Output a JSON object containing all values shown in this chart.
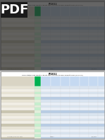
{
  "page_bg": "#c8c8c8",
  "table_bg": "#ffffff",
  "header_label_bg": "#d9d4c4",
  "header_green": "#00b050",
  "header_blue1": "#c5d9f1",
  "header_blue2": "#8eb4e3",
  "row_tan_a": "#e8e4d5",
  "row_tan_b": "#f2efe5",
  "row_tan_dark": "#c9c5b0",
  "row_blue_a": "#d9e4f0",
  "row_blue_b": "#eaf0f8",
  "row_blue_dark": "#b8cce4",
  "border_color": "#999999",
  "pdf_overlay": "#2a2a2a",
  "pdf_text": "#ffffff",
  "title_color": "#000000",
  "footer_color": "#666666",
  "separator_color": "#888888"
}
